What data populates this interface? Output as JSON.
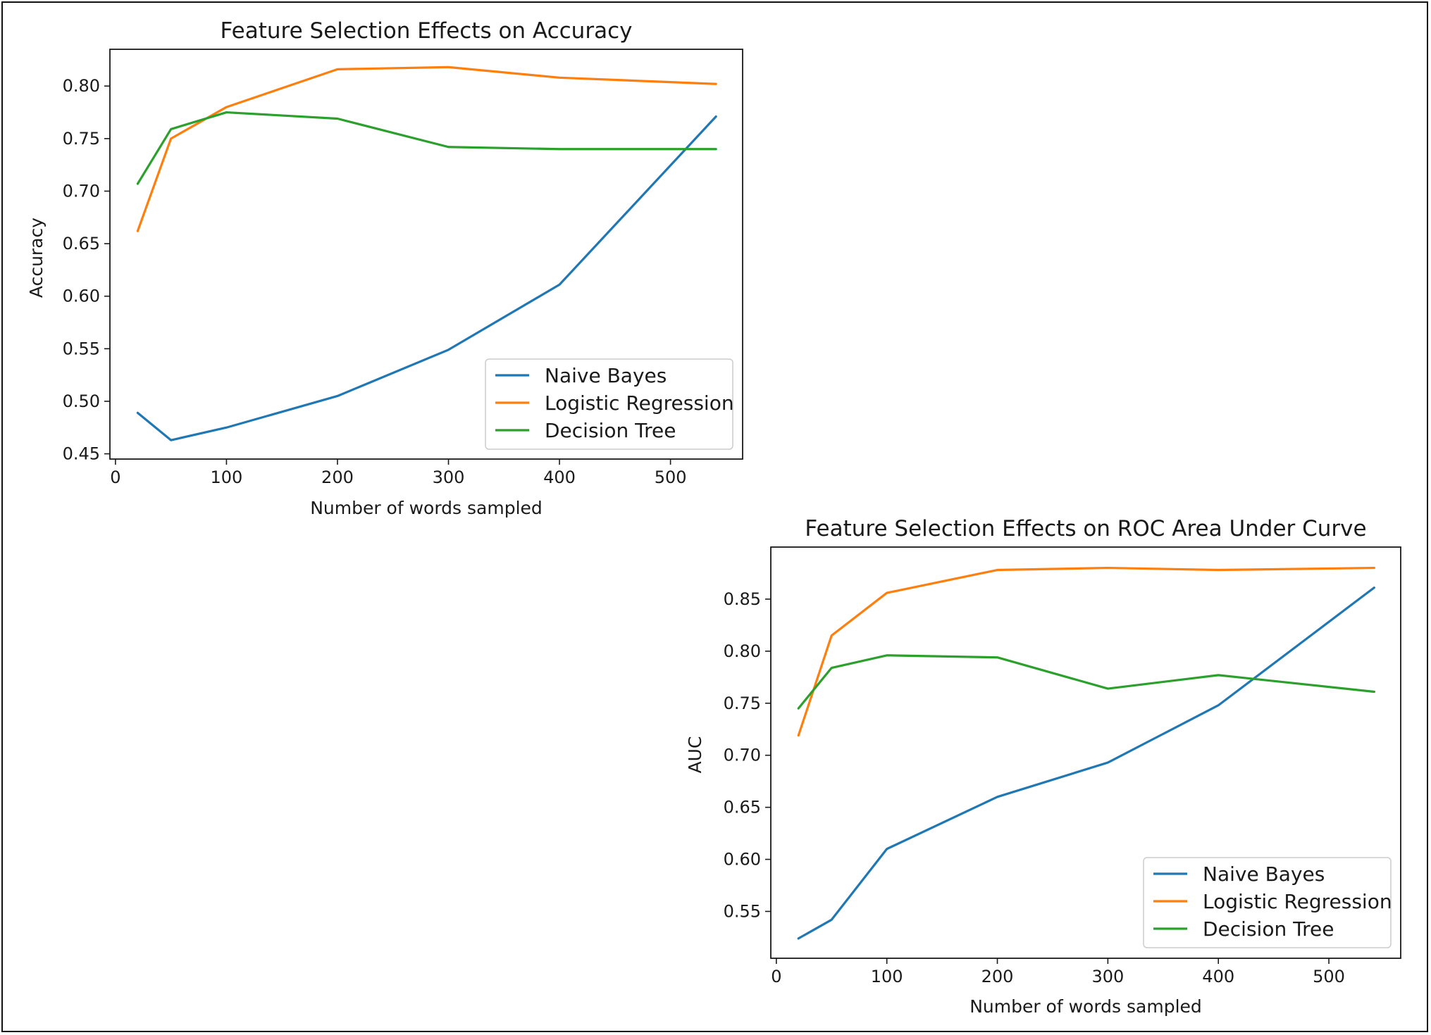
{
  "colors": {
    "naive_bayes": "#1f77b4",
    "logistic_regression": "#ff7f0e",
    "decision_tree": "#2ca02c"
  },
  "chart_data": [
    {
      "type": "line",
      "title": "Feature Selection Effects on Accuracy",
      "xlabel": "Number of words sampled",
      "ylabel": "Accuracy",
      "xlim": [
        -5,
        565
      ],
      "ylim": [
        0.445,
        0.835
      ],
      "xticks": [
        0,
        100,
        200,
        300,
        400,
        500
      ],
      "yticks": [
        0.45,
        0.5,
        0.55,
        0.6,
        0.65,
        0.7,
        0.75,
        0.8
      ],
      "grid": false,
      "legend_position": "bottom-right",
      "x": [
        20,
        50,
        100,
        200,
        300,
        400,
        541
      ],
      "series": [
        {
          "name": "Naive Bayes",
          "color_key": "naive_bayes",
          "values": [
            0.489,
            0.463,
            0.475,
            0.505,
            0.549,
            0.611,
            0.771
          ]
        },
        {
          "name": "Logistic Regression",
          "color_key": "logistic_regression",
          "values": [
            0.662,
            0.75,
            0.78,
            0.816,
            0.818,
            0.808,
            0.802
          ]
        },
        {
          "name": "Decision Tree",
          "color_key": "decision_tree",
          "values": [
            0.707,
            0.759,
            0.775,
            0.769,
            0.742,
            0.74,
            0.74
          ]
        }
      ]
    },
    {
      "type": "line",
      "title": "Feature Selection Effects on ROC Area Under Curve",
      "xlabel": "Number of words sampled",
      "ylabel": "AUC",
      "xlim": [
        -5,
        565
      ],
      "ylim": [
        0.505,
        0.9
      ],
      "xticks": [
        0,
        100,
        200,
        300,
        400,
        500
      ],
      "yticks": [
        0.55,
        0.6,
        0.65,
        0.7,
        0.75,
        0.8,
        0.85
      ],
      "grid": false,
      "legend_position": "bottom-right",
      "x": [
        20,
        50,
        100,
        200,
        300,
        400,
        541
      ],
      "series": [
        {
          "name": "Naive Bayes",
          "color_key": "naive_bayes",
          "values": [
            0.524,
            0.542,
            0.61,
            0.66,
            0.693,
            0.748,
            0.861
          ]
        },
        {
          "name": "Logistic Regression",
          "color_key": "logistic_regression",
          "values": [
            0.719,
            0.815,
            0.856,
            0.878,
            0.88,
            0.878,
            0.88
          ]
        },
        {
          "name": "Decision Tree",
          "color_key": "decision_tree",
          "values": [
            0.745,
            0.784,
            0.796,
            0.794,
            0.764,
            0.777,
            0.761
          ]
        }
      ]
    }
  ]
}
